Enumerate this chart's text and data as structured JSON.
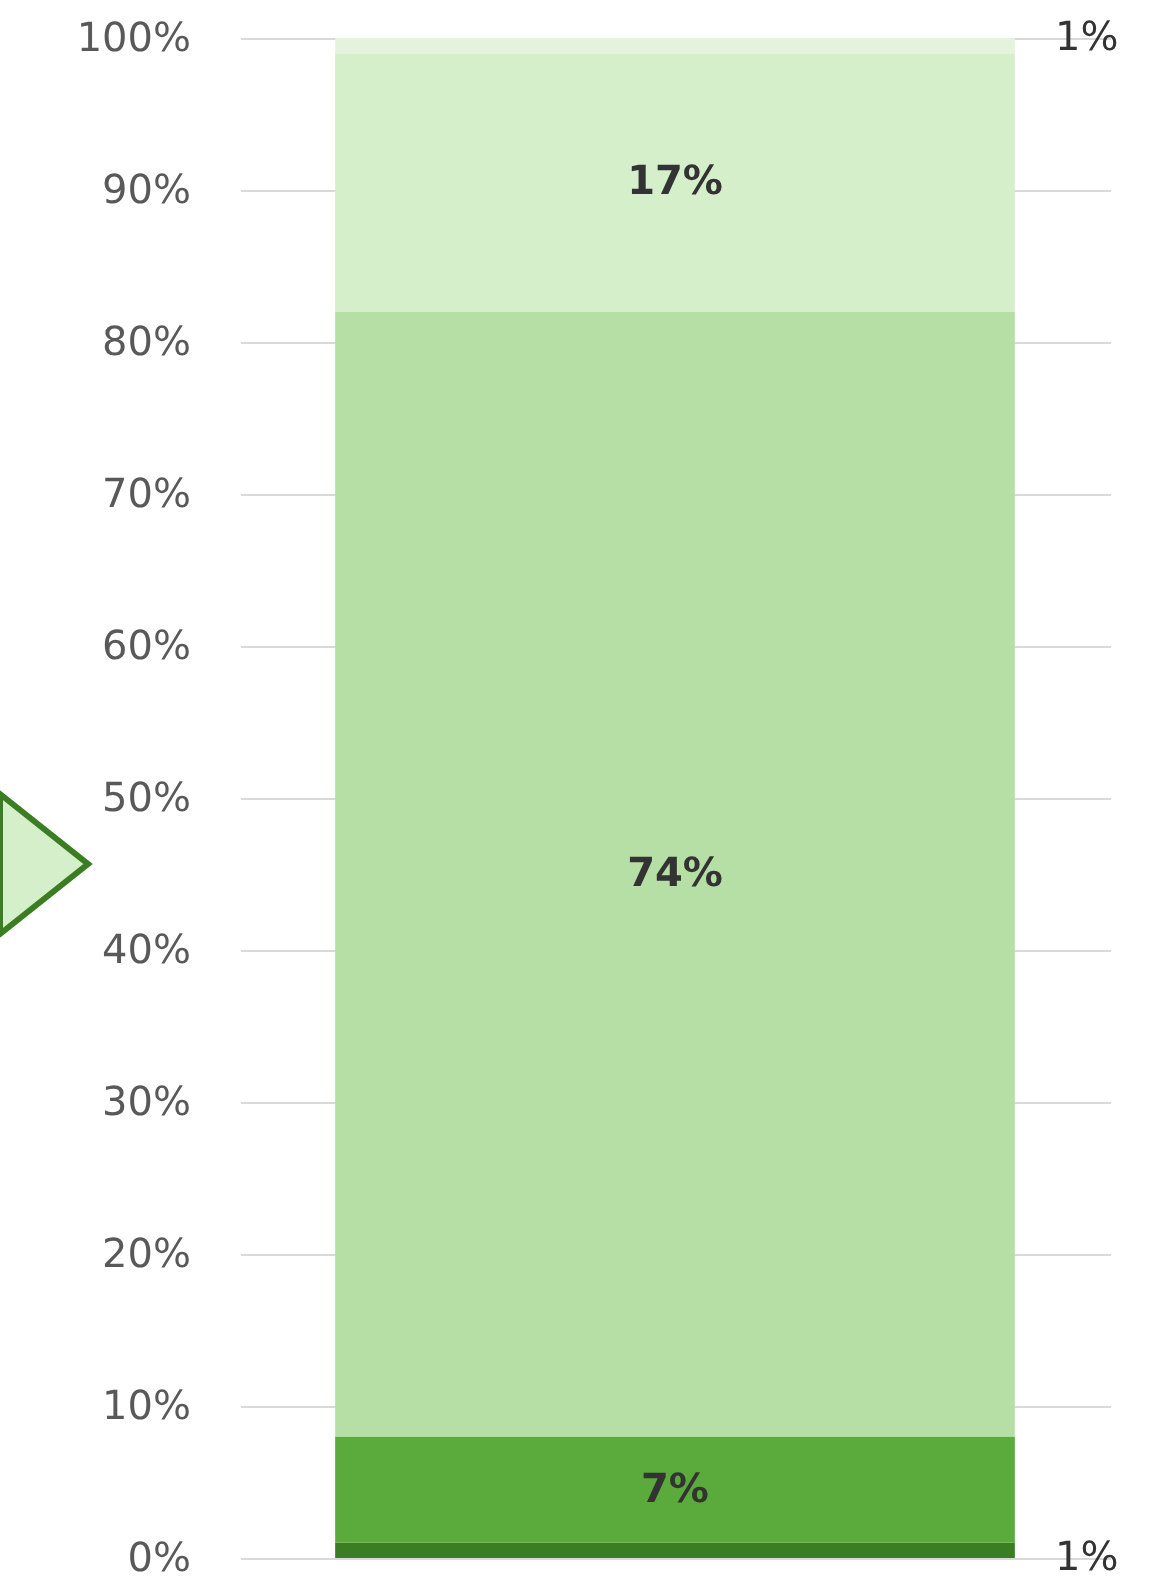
{
  "chart_data": {
    "type": "bar",
    "stacked": true,
    "categories": [
      null
    ],
    "series": [
      {
        "color": "#3a7d22",
        "values": [
          1
        ]
      },
      {
        "color": "#5aab3c",
        "values": [
          7
        ]
      },
      {
        "color": "#b5dfa5",
        "values": [
          74
        ]
      },
      {
        "color": "#d6efcb",
        "values": [
          17
        ]
      },
      {
        "color": "#e4f4dc",
        "values": [
          1
        ]
      }
    ],
    "ylim": [
      0,
      100
    ],
    "yticks": [
      {
        "value": 0,
        "label": "0%"
      },
      {
        "value": 10,
        "label": "10%"
      },
      {
        "value": 20,
        "label": "20%"
      },
      {
        "value": 30,
        "label": "30%"
      },
      {
        "value": 40,
        "label": "40%"
      },
      {
        "value": 50,
        "label": "50%"
      },
      {
        "value": 60,
        "label": "60%"
      },
      {
        "value": 70,
        "label": "70%"
      },
      {
        "value": 80,
        "label": "80%"
      },
      {
        "value": 90,
        "label": "90%"
      },
      {
        "value": 100,
        "label": "100%"
      }
    ],
    "value_labels": [
      "1%",
      "7%",
      "74%",
      "17%",
      "1%"
    ],
    "grid": "y",
    "legend": false,
    "tick_labels": "y"
  }
}
